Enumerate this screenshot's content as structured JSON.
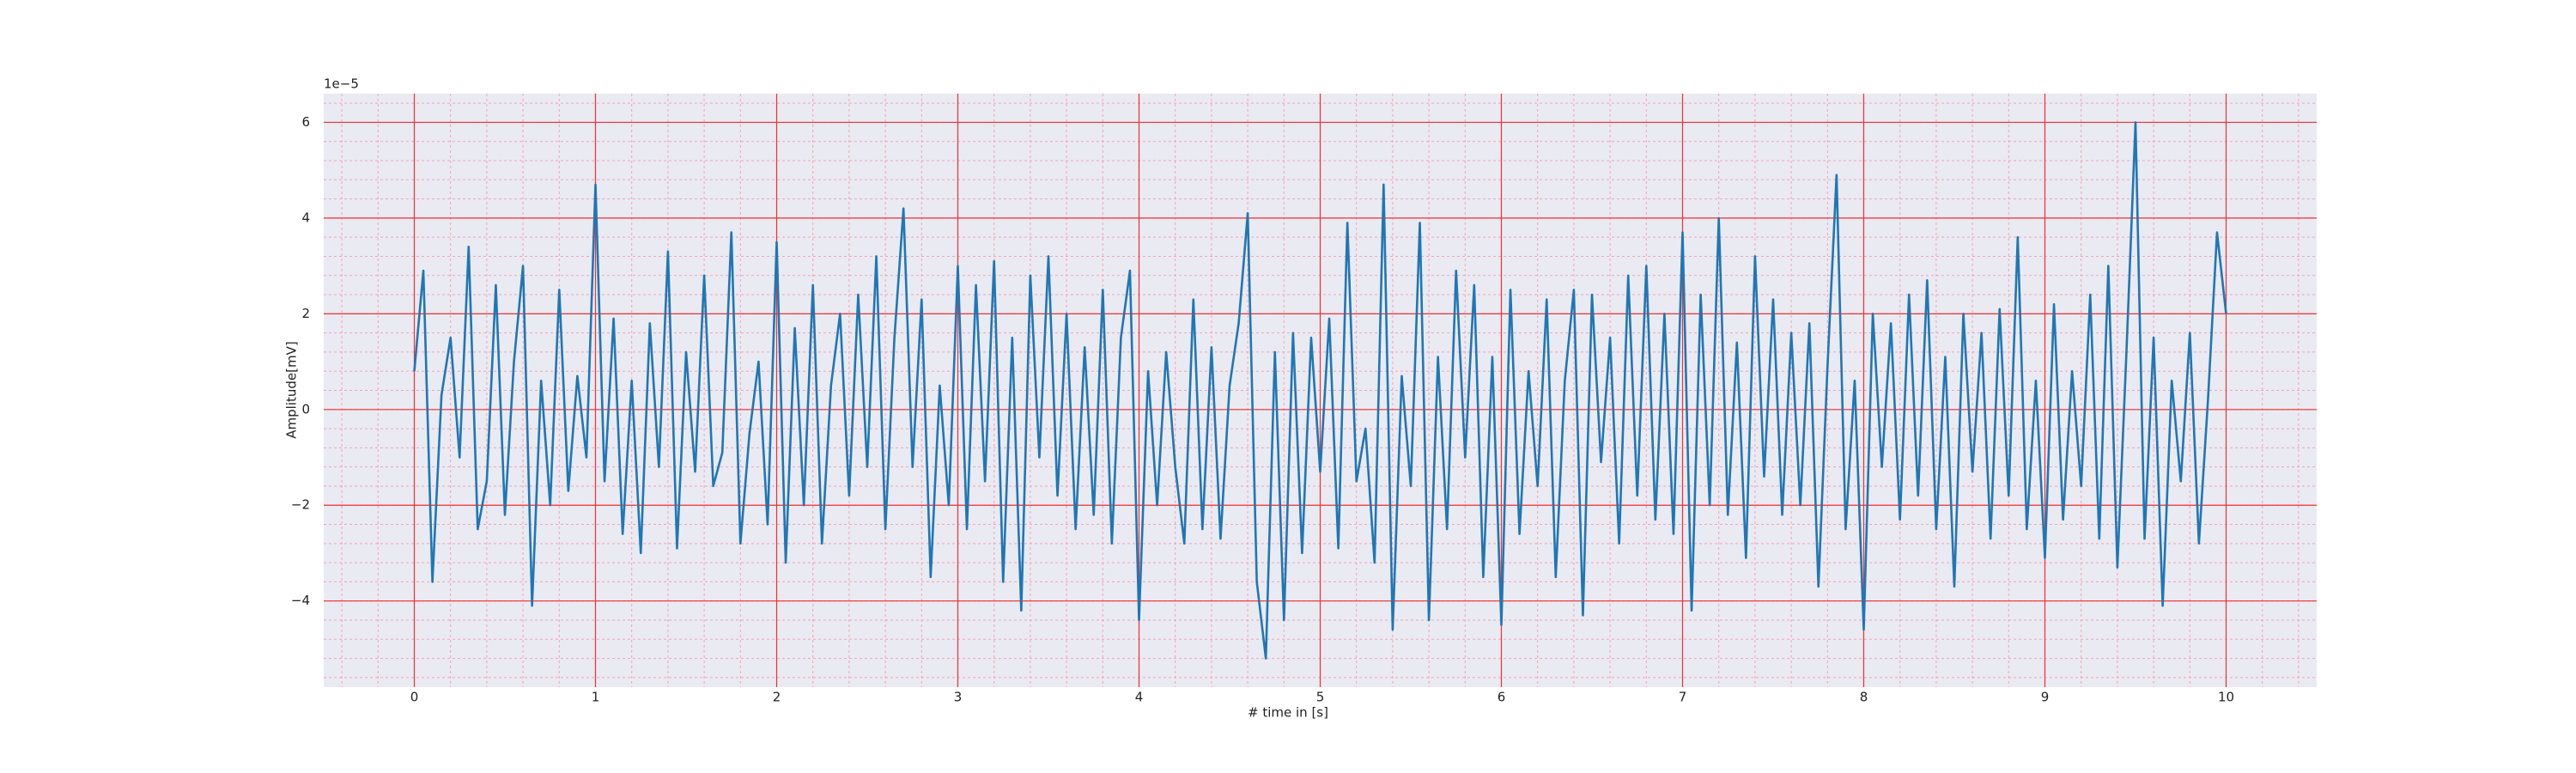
{
  "chart_data": {
    "type": "line",
    "xlabel": "# time in [s]",
    "ylabel": "Amplitude[mV]",
    "y_offset_label": "1e−5",
    "x": [
      0,
      0.05,
      0.1,
      0.15,
      0.2,
      0.25,
      0.3,
      0.35,
      0.4,
      0.45,
      0.5,
      0.55,
      0.6,
      0.65,
      0.7,
      0.75,
      0.8,
      0.85,
      0.9,
      0.95,
      1,
      1.05,
      1.1,
      1.15,
      1.2,
      1.25,
      1.3,
      1.35,
      1.4,
      1.45,
      1.5,
      1.55,
      1.6,
      1.65,
      1.7,
      1.75,
      1.8,
      1.85,
      1.9,
      1.95,
      2,
      2.05,
      2.1,
      2.15,
      2.2,
      2.25,
      2.3,
      2.35,
      2.4,
      2.45,
      2.5,
      2.55,
      2.6,
      2.65,
      2.7,
      2.75,
      2.8,
      2.85,
      2.9,
      2.95,
      3,
      3.05,
      3.1,
      3.15,
      3.2,
      3.25,
      3.3,
      3.35,
      3.4,
      3.45,
      3.5,
      3.55,
      3.6,
      3.65,
      3.7,
      3.75,
      3.8,
      3.85,
      3.9,
      3.95,
      4,
      4.05,
      4.1,
      4.15,
      4.2,
      4.25,
      4.3,
      4.35,
      4.4,
      4.45,
      4.5,
      4.55,
      4.6,
      4.65,
      4.7,
      4.75,
      4.8,
      4.85,
      4.9,
      4.95,
      5,
      5.05,
      5.1,
      5.15,
      5.2,
      5.25,
      5.3,
      5.35,
      5.4,
      5.45,
      5.5,
      5.55,
      5.6,
      5.65,
      5.7,
      5.75,
      5.8,
      5.85,
      5.9,
      5.95,
      6,
      6.05,
      6.1,
      6.15,
      6.2,
      6.25,
      6.3,
      6.35,
      6.4,
      6.45,
      6.5,
      6.55,
      6.6,
      6.65,
      6.7,
      6.75,
      6.8,
      6.85,
      6.9,
      6.95,
      7,
      7.05,
      7.1,
      7.15,
      7.2,
      7.25,
      7.3,
      7.35,
      7.4,
      7.45,
      7.5,
      7.55,
      7.6,
      7.65,
      7.7,
      7.75,
      7.8,
      7.85,
      7.9,
      7.95,
      8,
      8.05,
      8.1,
      8.15,
      8.2,
      8.25,
      8.3,
      8.35,
      8.4,
      8.45,
      8.5,
      8.55,
      8.6,
      8.65,
      8.7,
      8.75,
      8.8,
      8.85,
      8.9,
      8.95,
      9,
      9.05,
      9.1,
      9.15,
      9.2,
      9.25,
      9.3,
      9.35,
      9.4,
      9.45,
      9.5,
      9.55,
      9.6,
      9.65,
      9.7,
      9.75,
      9.8,
      9.85,
      9.9,
      9.95,
      10
    ],
    "values": [
      0.8,
      2.9,
      -3.6,
      0.3,
      1.5,
      -1.0,
      3.4,
      -2.5,
      -1.5,
      2.6,
      -2.2,
      1.0,
      3.0,
      -4.1,
      0.6,
      -2.0,
      2.5,
      -1.7,
      0.7,
      -1.0,
      4.7,
      -1.5,
      1.9,
      -2.6,
      0.6,
      -3.0,
      1.8,
      -1.2,
      3.3,
      -2.9,
      1.2,
      -1.3,
      2.8,
      -1.6,
      -0.9,
      3.7,
      -2.8,
      -0.5,
      1.0,
      -2.4,
      3.5,
      -3.2,
      1.7,
      -2.0,
      2.6,
      -2.8,
      0.5,
      2.0,
      -1.8,
      2.4,
      -1.2,
      3.2,
      -2.5,
      1.5,
      4.2,
      -1.2,
      2.3,
      -3.5,
      0.5,
      -2.0,
      3.0,
      -2.5,
      2.6,
      -1.5,
      3.1,
      -3.6,
      1.5,
      -4.2,
      2.8,
      -1.0,
      3.2,
      -1.8,
      2.0,
      -2.5,
      1.3,
      -2.2,
      2.5,
      -2.8,
      1.5,
      2.9,
      -4.4,
      0.8,
      -2.0,
      1.2,
      -1.2,
      -2.8,
      2.3,
      -2.5,
      1.3,
      -2.7,
      0.5,
      1.8,
      4.1,
      -3.6,
      -5.2,
      1.2,
      -4.4,
      1.6,
      -3.0,
      1.5,
      -1.3,
      1.9,
      -2.9,
      3.9,
      -1.5,
      -0.4,
      -3.2,
      4.7,
      -4.6,
      0.7,
      -1.6,
      3.9,
      -4.4,
      1.1,
      -2.5,
      2.9,
      -1.0,
      2.6,
      -3.5,
      1.1,
      -4.5,
      2.5,
      -2.6,
      0.8,
      -1.6,
      2.3,
      -3.5,
      0.6,
      2.5,
      -4.3,
      2.4,
      -1.1,
      1.5,
      -2.8,
      2.8,
      -1.8,
      3.0,
      -2.3,
      2.0,
      -2.6,
      3.7,
      -4.2,
      2.4,
      -2.0,
      4.0,
      -2.2,
      1.4,
      -3.1,
      3.2,
      -1.4,
      2.3,
      -2.2,
      1.6,
      -2.0,
      1.8,
      -3.7,
      0.9,
      4.9,
      -2.5,
      0.6,
      -4.6,
      2.0,
      -1.2,
      1.8,
      -2.3,
      2.4,
      -1.8,
      2.7,
      -2.5,
      1.1,
      -3.7,
      2.0,
      -1.3,
      1.6,
      -2.7,
      2.1,
      -1.8,
      3.6,
      -2.5,
      0.6,
      -3.1,
      2.2,
      -2.3,
      0.8,
      -1.6,
      2.4,
      -2.7,
      3.0,
      -3.3,
      1.2,
      6.0,
      -2.7,
      1.5,
      -4.1,
      0.6,
      -1.5,
      1.6,
      -2.8,
      0.2,
      3.7,
      2.0
    ],
    "color": "#1f77b4",
    "xlim": [
      -0.5,
      10.5
    ],
    "xticks": [
      0,
      1,
      2,
      3,
      4,
      5,
      6,
      7,
      8,
      9,
      10
    ],
    "ylim": [
      -5.8,
      6.6
    ],
    "yticks": [
      {
        "value": -4,
        "label": "−4"
      },
      {
        "value": -2,
        "label": "−2"
      },
      0,
      2,
      4,
      6
    ],
    "grid": true,
    "minor_grid": true
  }
}
